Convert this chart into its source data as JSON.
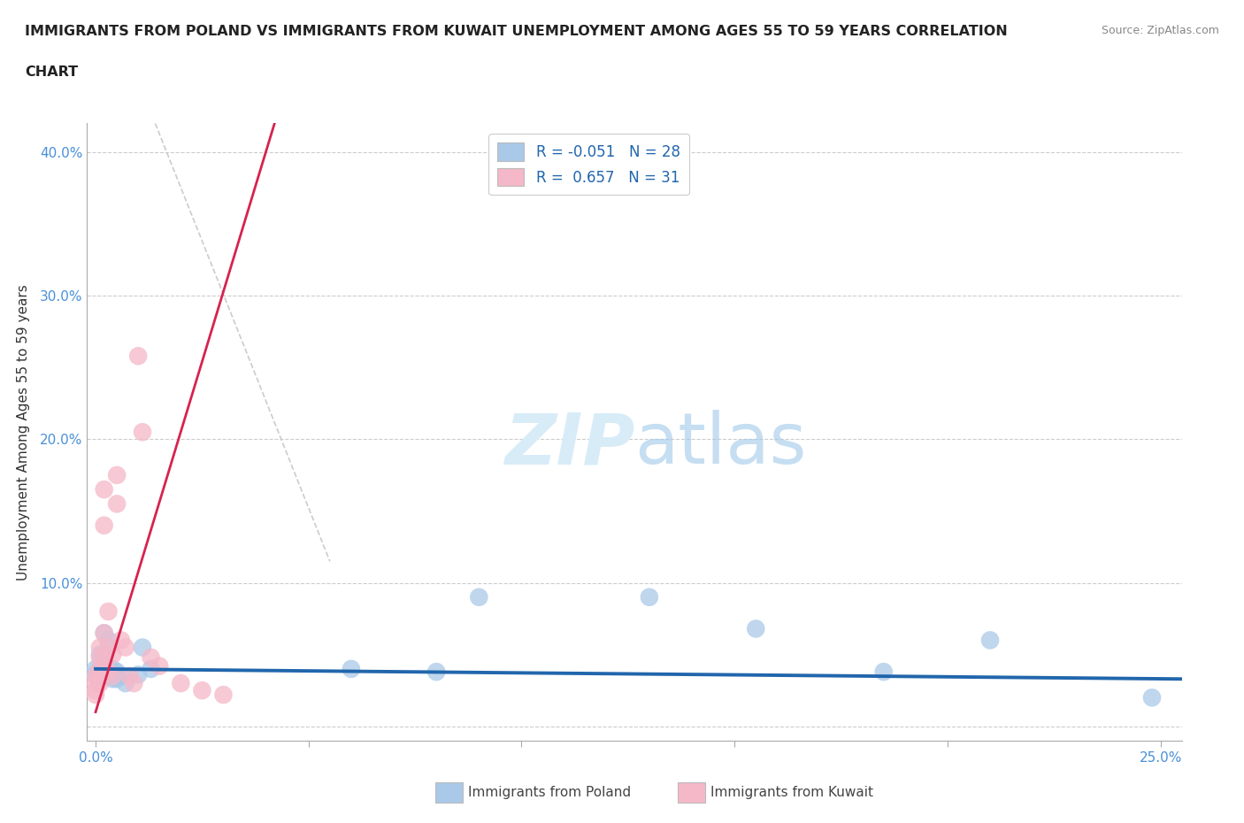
{
  "title_line1": "IMMIGRANTS FROM POLAND VS IMMIGRANTS FROM KUWAIT UNEMPLOYMENT AMONG AGES 55 TO 59 YEARS CORRELATION",
  "title_line2": "CHART",
  "source_text": "Source: ZipAtlas.com",
  "ylabel": "Unemployment Among Ages 55 to 59 years",
  "xlim": [
    -0.002,
    0.255
  ],
  "ylim": [
    -0.01,
    0.42
  ],
  "xticks": [
    0.0,
    0.05,
    0.1,
    0.15,
    0.2,
    0.25
  ],
  "yticks": [
    0.0,
    0.1,
    0.2,
    0.3,
    0.4
  ],
  "xticklabels": [
    "0.0%",
    "",
    "",
    "",
    "",
    "25.0%"
  ],
  "yticklabels": [
    "",
    "10.0%",
    "20.0%",
    "30.0%",
    "40.0%"
  ],
  "poland_R": -0.051,
  "poland_N": 28,
  "kuwait_R": 0.657,
  "kuwait_N": 31,
  "poland_color": "#aac9e8",
  "kuwait_color": "#f5b8c8",
  "poland_trend_color": "#2166ac",
  "kuwait_trend_color": "#d6234e",
  "grid_color": "#cccccc",
  "ref_line_color": "#cccccc",
  "background_color": "#ffffff",
  "watermark_color": "#d8ecf8",
  "poland_x": [
    0.0,
    0.0,
    0.001,
    0.001,
    0.001,
    0.002,
    0.002,
    0.002,
    0.003,
    0.003,
    0.003,
    0.004,
    0.004,
    0.005,
    0.005,
    0.006,
    0.007,
    0.01,
    0.011,
    0.013,
    0.06,
    0.08,
    0.09,
    0.13,
    0.155,
    0.185,
    0.21,
    0.248
  ],
  "poland_y": [
    0.04,
    0.036,
    0.05,
    0.04,
    0.035,
    0.065,
    0.05,
    0.038,
    0.06,
    0.04,
    0.035,
    0.04,
    0.033,
    0.038,
    0.033,
    0.035,
    0.03,
    0.036,
    0.055,
    0.04,
    0.04,
    0.038,
    0.09,
    0.09,
    0.068,
    0.038,
    0.06,
    0.02
  ],
  "kuwait_x": [
    0.0,
    0.0,
    0.0,
    0.0,
    0.001,
    0.001,
    0.001,
    0.001,
    0.001,
    0.002,
    0.002,
    0.002,
    0.002,
    0.003,
    0.003,
    0.003,
    0.004,
    0.004,
    0.005,
    0.005,
    0.006,
    0.007,
    0.008,
    0.009,
    0.01,
    0.011,
    0.013,
    0.015,
    0.02,
    0.025,
    0.03
  ],
  "kuwait_y": [
    0.035,
    0.03,
    0.025,
    0.022,
    0.055,
    0.048,
    0.04,
    0.035,
    0.03,
    0.165,
    0.14,
    0.065,
    0.045,
    0.08,
    0.055,
    0.038,
    0.05,
    0.035,
    0.175,
    0.155,
    0.06,
    0.055,
    0.035,
    0.03,
    0.258,
    0.205,
    0.048,
    0.042,
    0.03,
    0.025,
    0.022
  ],
  "poland_trend_x": [
    0.0,
    0.255
  ],
  "poland_trend_y": [
    0.04,
    0.033
  ],
  "kuwait_trend_x": [
    0.0,
    0.042
  ],
  "kuwait_trend_y": [
    0.01,
    0.42
  ],
  "ref_line_x": [
    0.014,
    0.055
  ],
  "ref_line_y": [
    0.42,
    0.115
  ]
}
